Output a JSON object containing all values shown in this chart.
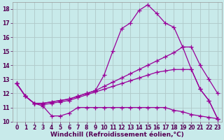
{
  "background_color": "#c8eaea",
  "grid_color": "#b0c8c8",
  "line_color": "#990099",
  "line_width": 0.9,
  "marker": "+",
  "marker_size": 4,
  "marker_lw": 0.9,
  "xlabel": "Windchill (Refroidissement éolien,°C)",
  "xlabel_fontsize": 6.5,
  "tick_fontsize": 5.5,
  "xlim": [
    -0.5,
    23.5
  ],
  "ylim": [
    10,
    18.5
  ],
  "yticks": [
    10,
    11,
    12,
    13,
    14,
    15,
    16,
    17,
    18
  ],
  "xticks": [
    0,
    1,
    2,
    3,
    4,
    5,
    6,
    7,
    8,
    9,
    10,
    11,
    12,
    13,
    14,
    15,
    16,
    17,
    18,
    19,
    20,
    21,
    22,
    23
  ],
  "lines": [
    {
      "x": [
        0,
        1,
        2,
        3,
        4,
        5,
        6,
        7,
        8,
        9,
        10,
        11,
        12,
        13,
        14,
        15,
        16,
        17,
        18,
        19,
        20,
        21,
        22,
        23
      ],
      "y": [
        12.7,
        11.8,
        11.3,
        11.1,
        10.4,
        10.4,
        10.6,
        11.0,
        11.0,
        11.0,
        11.0,
        11.0,
        11.0,
        11.0,
        11.0,
        11.0,
        11.0,
        11.0,
        10.8,
        10.7,
        10.5,
        10.4,
        10.3,
        10.2
      ]
    },
    {
      "x": [
        0,
        1,
        2,
        3,
        4,
        5,
        6,
        7,
        8,
        9,
        10,
        11,
        12,
        13,
        14,
        15,
        16,
        17,
        18,
        19,
        20,
        21,
        22,
        23
      ],
      "y": [
        12.7,
        11.8,
        11.3,
        11.2,
        11.3,
        11.4,
        11.5,
        11.7,
        11.9,
        12.1,
        12.3,
        12.5,
        12.7,
        12.9,
        13.1,
        13.3,
        13.5,
        13.6,
        13.7,
        13.7,
        13.7,
        12.3,
        11.5,
        10.2
      ]
    },
    {
      "x": [
        0,
        1,
        2,
        3,
        4,
        5,
        6,
        7,
        8,
        9,
        10,
        11,
        12,
        13,
        14,
        15,
        16,
        17,
        18,
        19,
        20,
        21,
        22,
        23
      ],
      "y": [
        12.7,
        11.8,
        11.3,
        11.3,
        11.4,
        11.5,
        11.6,
        11.8,
        12.0,
        12.2,
        12.5,
        12.8,
        13.1,
        13.4,
        13.7,
        14.0,
        14.3,
        14.6,
        14.9,
        15.3,
        15.3,
        14.0,
        13.0,
        12.0
      ]
    },
    {
      "x": [
        0,
        1,
        2,
        3,
        4,
        5,
        6,
        7,
        8,
        9,
        10,
        11,
        12,
        13,
        14,
        15,
        16,
        17,
        18,
        19,
        20,
        21,
        22,
        23
      ],
      "y": [
        12.7,
        11.8,
        11.3,
        11.3,
        11.4,
        11.5,
        11.6,
        11.8,
        12.0,
        12.2,
        13.3,
        15.0,
        16.6,
        17.0,
        17.9,
        18.3,
        17.7,
        17.0,
        16.7,
        15.3,
        13.7,
        12.3,
        11.5,
        10.2
      ]
    }
  ]
}
